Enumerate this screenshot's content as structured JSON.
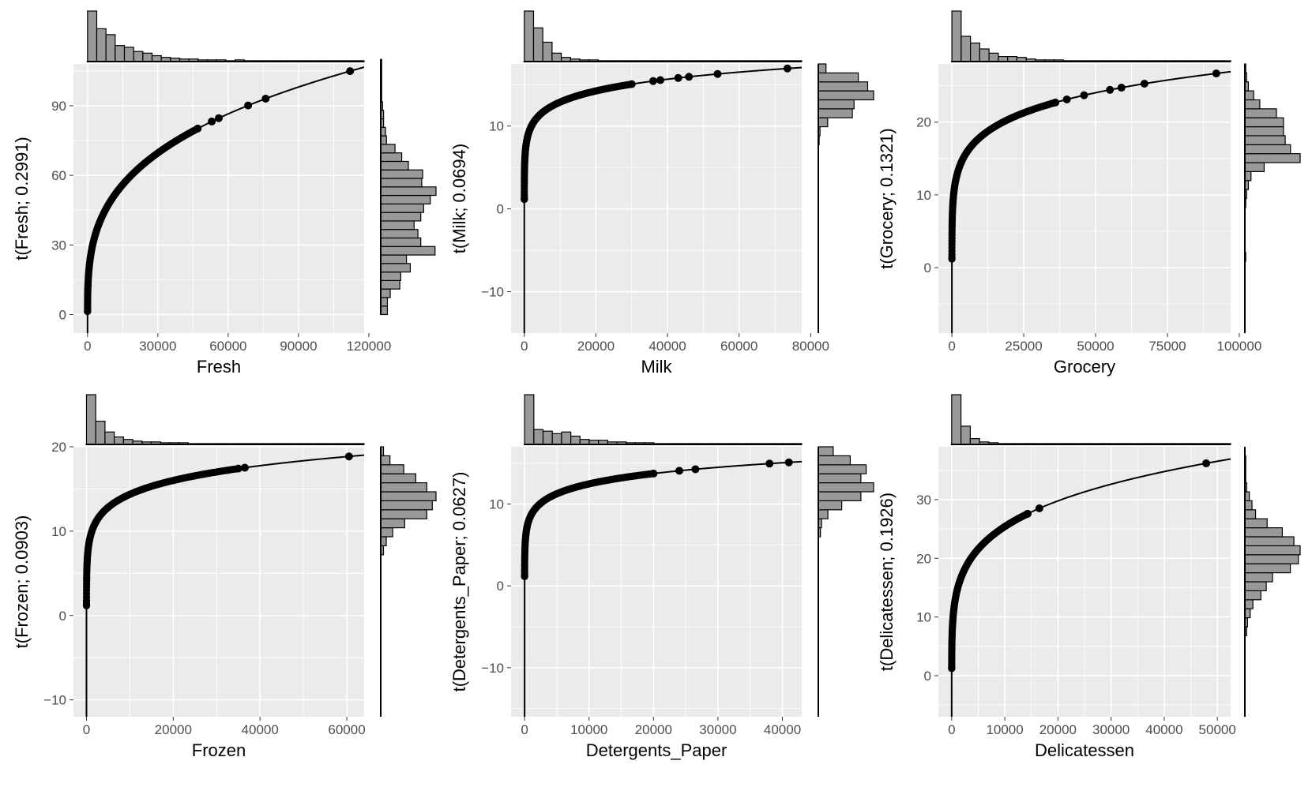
{
  "chart_data": [
    {
      "type": "scatter",
      "title": "",
      "xlabel": "Fresh",
      "ylabel": "t(Fresh; 0.2991)",
      "lambda": 0.2991,
      "xlim": [
        -6000,
        118000
      ],
      "ylim": [
        -8,
        108
      ],
      "xticks": [
        0,
        30000,
        60000,
        90000,
        120000
      ],
      "xtick_labels": [
        "0",
        "30000",
        "60000",
        "90000",
        "120000"
      ],
      "yticks": [
        0,
        30,
        60,
        90
      ],
      "ytick_labels": [
        "0",
        "30",
        "60",
        "90"
      ],
      "grid": true,
      "highlight_x": [
        47000,
        53000,
        56000,
        68500,
        76000,
        112000
      ],
      "x_hist": [
        60,
        39,
        32,
        19,
        17,
        12,
        10,
        7,
        5,
        4,
        3,
        3,
        2,
        2,
        2,
        1,
        2,
        1,
        1,
        1,
        1,
        1,
        1,
        1,
        1,
        1,
        1,
        1,
        1,
        1
      ],
      "y_hist_range": [
        0,
        110
      ],
      "y_hist": [
        7,
        7,
        10,
        20,
        21,
        31,
        27,
        57,
        42,
        39,
        35,
        42,
        45,
        52,
        58,
        43,
        44,
        29,
        22,
        15,
        6,
        5,
        3,
        3,
        2,
        1,
        1,
        1,
        1,
        1
      ]
    },
    {
      "type": "scatter",
      "title": "",
      "xlabel": "Milk",
      "ylabel": "t(Milk; 0.0694)",
      "lambda": 0.0694,
      "xlim": [
        -3700,
        77500
      ],
      "ylim": [
        -15,
        17.5
      ],
      "xticks": [
        0,
        20000,
        40000,
        60000,
        80000
      ],
      "xtick_labels": [
        "0",
        "20000",
        "40000",
        "60000",
        "80000"
      ],
      "yticks": [
        -10,
        0,
        10
      ],
      "ytick_labels": [
        "−10",
        "0",
        "10"
      ],
      "grid": true,
      "highlight_x": [
        30000,
        36000,
        38000,
        43000,
        46000,
        54000,
        73500
      ],
      "x_hist": [
        60,
        40,
        23,
        10,
        5,
        3,
        2,
        2,
        1,
        1,
        1,
        1,
        1,
        1,
        1,
        1,
        1,
        1,
        1,
        1,
        1,
        1,
        1,
        1,
        1,
        1,
        1,
        1,
        1,
        1
      ],
      "y_hist_range": [
        -15,
        17.5
      ],
      "y_hist": [
        0,
        0,
        0,
        0,
        0,
        0,
        0,
        0,
        0,
        0,
        0,
        0,
        0,
        0,
        0,
        0,
        0,
        0,
        0,
        0,
        0,
        1,
        2,
        11,
        40,
        42,
        65,
        58,
        47,
        9
      ]
    },
    {
      "type": "scatter",
      "title": "",
      "xlabel": "Grocery",
      "ylabel": "t(Grocery; 0.1321)",
      "lambda": 0.1321,
      "xlim": [
        -4700,
        97000
      ],
      "ylim": [
        -9,
        28
      ],
      "xticks": [
        0,
        25000,
        50000,
        75000,
        100000
      ],
      "xtick_labels": [
        "0",
        "25000",
        "50000",
        "75000",
        "100000"
      ],
      "yticks": [
        0,
        10,
        20
      ],
      "ytick_labels": [
        "0",
        "10",
        "20"
      ],
      "grid": true,
      "highlight_x": [
        36000,
        40000,
        46000,
        55000,
        59000,
        67000,
        92000
      ],
      "x_hist": [
        60,
        30,
        22,
        15,
        10,
        6,
        6,
        5,
        3,
        2,
        2,
        2,
        1,
        1,
        1,
        1,
        1,
        1,
        1,
        1,
        1,
        1,
        1,
        1,
        1,
        1,
        1,
        1,
        1,
        1
      ],
      "y_hist_range": [
        -9,
        28
      ],
      "y_hist": [
        0,
        0,
        0,
        0,
        0,
        0,
        0,
        0,
        1,
        0,
        0,
        0,
        0,
        0,
        1,
        2,
        4,
        7,
        22,
        63,
        52,
        46,
        44,
        44,
        36,
        17,
        10,
        4,
        2,
        1
      ]
    },
    {
      "type": "scatter",
      "title": "",
      "xlabel": "Frozen",
      "ylabel": "t(Frozen; 0.0903)",
      "lambda": 0.0903,
      "xlim": [
        -3000,
        64000
      ],
      "ylim": [
        -12,
        20
      ],
      "xticks": [
        0,
        20000,
        40000,
        60000
      ],
      "xtick_labels": [
        "0",
        "20000",
        "40000",
        "60000"
      ],
      "yticks": [
        -10,
        0,
        10,
        20
      ],
      "ytick_labels": [
        "−10",
        "0",
        "10",
        "20"
      ],
      "grid": true,
      "highlight_x": [
        35000,
        36500,
        60500
      ],
      "x_hist": [
        60,
        28,
        15,
        9,
        6,
        4,
        3,
        3,
        2,
        2,
        2,
        1,
        1,
        1,
        1,
        1,
        1,
        1,
        1,
        1,
        1,
        1,
        1,
        1,
        1,
        1,
        1,
        1,
        1,
        1
      ],
      "y_hist_range": [
        -12,
        20
      ],
      "y_hist": [
        0,
        0,
        0,
        0,
        0,
        0,
        0,
        0,
        0,
        0,
        0,
        0,
        0,
        0,
        0,
        0,
        0,
        0,
        3,
        6,
        13,
        26,
        50,
        56,
        60,
        50,
        38,
        25,
        10,
        3
      ]
    },
    {
      "type": "scatter",
      "title": "",
      "xlabel": "Detergents_Paper",
      "ylabel": "t(Detergents_Paper; 0.0627)",
      "lambda": 0.0627,
      "xlim": [
        -2100,
        43000
      ],
      "ylim": [
        -16,
        17
      ],
      "xticks": [
        0,
        10000,
        20000,
        30000,
        40000
      ],
      "xtick_labels": [
        "0",
        "10000",
        "20000",
        "30000",
        "40000"
      ],
      "yticks": [
        -10,
        0,
        10
      ],
      "ytick_labels": [
        "−10",
        "0",
        "10"
      ],
      "grid": true,
      "highlight_x": [
        20000,
        24000,
        26500,
        38000,
        41000
      ],
      "x_hist": [
        60,
        18,
        16,
        13,
        15,
        10,
        6,
        5,
        5,
        3,
        3,
        2,
        2,
        2,
        1,
        1,
        1,
        1,
        1,
        1,
        1,
        1,
        1,
        1,
        1,
        1,
        1,
        1,
        1,
        1
      ],
      "y_hist_range": [
        -16,
        17
      ],
      "y_hist": [
        0,
        0,
        0,
        0,
        0,
        0,
        0,
        0,
        0,
        0,
        0,
        0,
        0,
        0,
        0,
        0,
        0,
        0,
        0,
        0,
        2,
        3,
        9,
        22,
        40,
        52,
        40,
        45,
        30,
        14
      ]
    },
    {
      "type": "scatter",
      "title": "",
      "xlabel": "Delicatessen",
      "ylabel": "t(Delicatessen; 0.1926)",
      "lambda": 0.1926,
      "xlim": [
        -2500,
        52500
      ],
      "ylim": [
        -7,
        39
      ],
      "xticks": [
        0,
        10000,
        20000,
        30000,
        40000,
        50000
      ],
      "xtick_labels": [
        "0",
        "10000",
        "20000",
        "30000",
        "40000",
        "50000"
      ],
      "yticks": [
        0,
        10,
        20,
        30
      ],
      "ytick_labels": [
        "0",
        "10",
        "20",
        "30"
      ],
      "grid": true,
      "highlight_x": [
        14300,
        16500,
        47900
      ],
      "x_hist": [
        60,
        22,
        7,
        3,
        2,
        1,
        1,
        1,
        1,
        1,
        1,
        1,
        1,
        1,
        1,
        1,
        1,
        1,
        1,
        1,
        1,
        1,
        1,
        1,
        1,
        1,
        1,
        1,
        1,
        1
      ],
      "y_hist_range": [
        -7,
        39
      ],
      "y_hist": [
        0,
        0,
        0,
        0,
        0,
        0,
        0,
        0,
        0,
        2,
        3,
        6,
        9,
        18,
        24,
        31,
        51,
        60,
        62,
        55,
        42,
        25,
        12,
        8,
        5,
        2,
        1,
        1,
        1,
        0
      ]
    }
  ]
}
